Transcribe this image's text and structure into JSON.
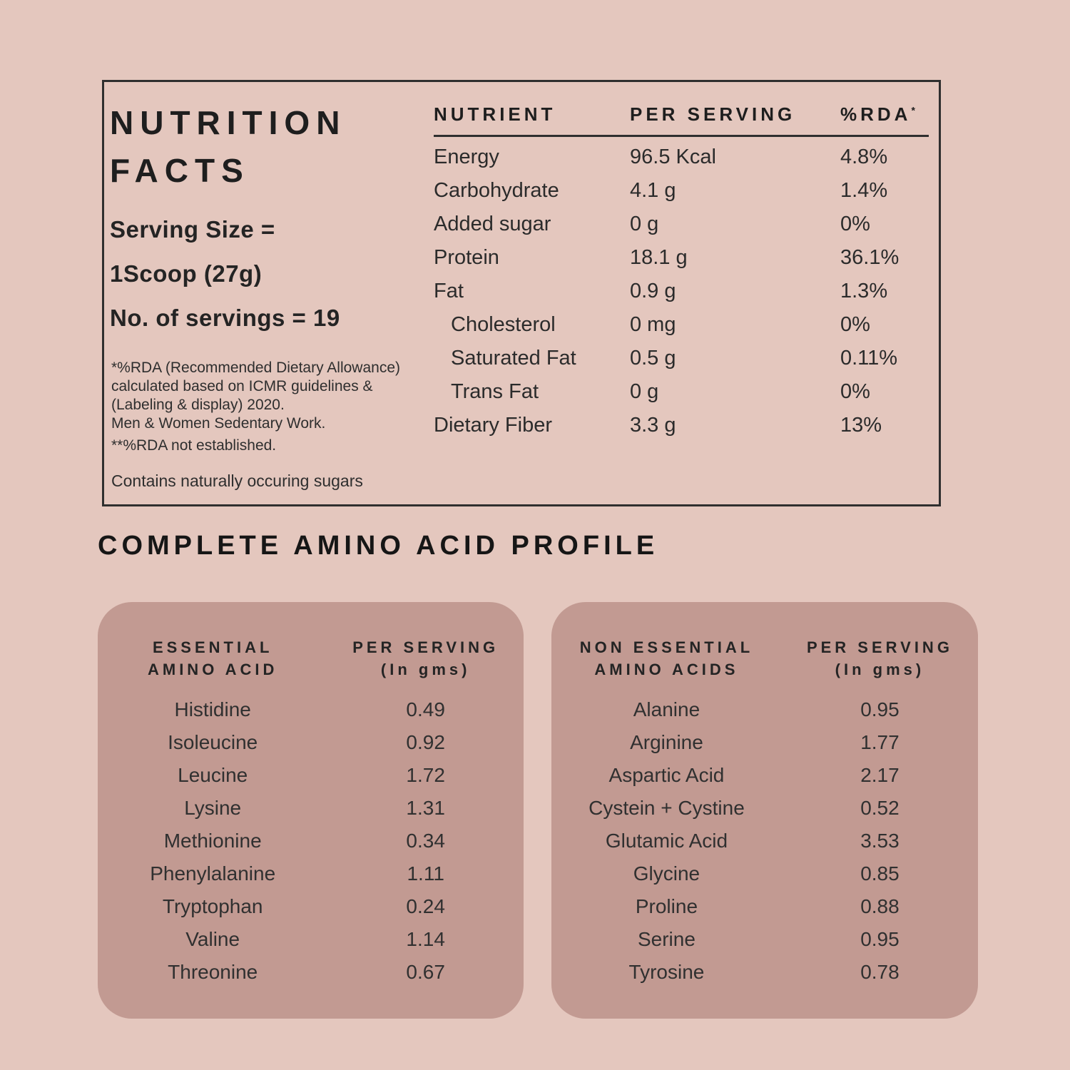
{
  "colors": {
    "background": "#E4C7BE",
    "panel": "#C29A92",
    "text": "#2B2B2B",
    "border": "#2F2F2F"
  },
  "nutrition_facts": {
    "title_line1": "NUTRITION",
    "title_line2": "FACTS",
    "serving_size_line1": "Serving Size =",
    "serving_size_line2": "1Scoop  (27g)",
    "servings_line": "No. of servings =  19",
    "footnote_lines": [
      "*%RDA (Recommended Dietary Allowance)",
      "calculated based on ICMR guidelines &",
      "(Labeling & display) 2020.",
      "Men & Women Sedentary Work."
    ],
    "footnote_rda": "**%RDA not established.",
    "footnote_sugars": "Contains naturally occuring sugars",
    "table": {
      "col_nutrient": "NUTRIENT",
      "col_per_serving": "PER SERVING",
      "col_rda": "%RDA",
      "col_rda_sup": "*",
      "rows": [
        {
          "nutrient": "Energy",
          "amount": "96.5 Kcal",
          "rda": "4.8%"
        },
        {
          "nutrient": "Carbohydrate",
          "amount": "4.1 g",
          "rda": "1.4%"
        },
        {
          "nutrient": "Added sugar",
          "amount": "0 g",
          "rda": "0%"
        },
        {
          "nutrient": "Protein",
          "amount": "18.1 g",
          "rda": "36.1%"
        },
        {
          "nutrient": "Fat",
          "amount": "0.9 g",
          "rda": "1.3%"
        },
        {
          "nutrient": "Cholesterol",
          "amount": "0 mg",
          "rda": "0%"
        },
        {
          "nutrient": "Saturated Fat",
          "amount": "0.5 g",
          "rda": "0.11%"
        },
        {
          "nutrient": "Trans Fat",
          "amount": "0 g",
          "rda": "0%"
        },
        {
          "nutrient": "Dietary Fiber",
          "amount": "3.3 g",
          "rda": "13%"
        }
      ]
    }
  },
  "amino_profile": {
    "heading": "COMPLETE AMINO ACID PROFILE",
    "essential": {
      "name_header_line1": "ESSENTIAL",
      "name_header_line2": "AMINO ACID",
      "value_header_line1": "PER SERVING",
      "value_header_line2": "(In gms)",
      "rows": [
        {
          "name": "Histidine",
          "value": "0.49"
        },
        {
          "name": "Isoleucine",
          "value": "0.92"
        },
        {
          "name": "Leucine",
          "value": "1.72"
        },
        {
          "name": "Lysine",
          "value": "1.31"
        },
        {
          "name": "Methionine",
          "value": "0.34"
        },
        {
          "name": "Phenylalanine",
          "value": "1.11"
        },
        {
          "name": "Tryptophan",
          "value": "0.24"
        },
        {
          "name": "Valine",
          "value": "1.14"
        },
        {
          "name": "Threonine",
          "value": "0.67"
        }
      ]
    },
    "non_essential": {
      "name_header_line1": "NON ESSENTIAL",
      "name_header_line2": "AMINO ACIDS",
      "value_header_line1": "PER SERVING",
      "value_header_line2": "(In gms)",
      "rows": [
        {
          "name": "Alanine",
          "value": "0.95"
        },
        {
          "name": "Arginine",
          "value": "1.77"
        },
        {
          "name": "Aspartic Acid",
          "value": "2.17"
        },
        {
          "name": "Cystein + Cystine",
          "value": "0.52"
        },
        {
          "name": "Glutamic Acid",
          "value": "3.53"
        },
        {
          "name": "Glycine",
          "value": "0.85"
        },
        {
          "name": "Proline",
          "value": "0.88"
        },
        {
          "name": "Serine",
          "value": "0.95"
        },
        {
          "name": "Tyrosine",
          "value": "0.78"
        }
      ]
    }
  }
}
